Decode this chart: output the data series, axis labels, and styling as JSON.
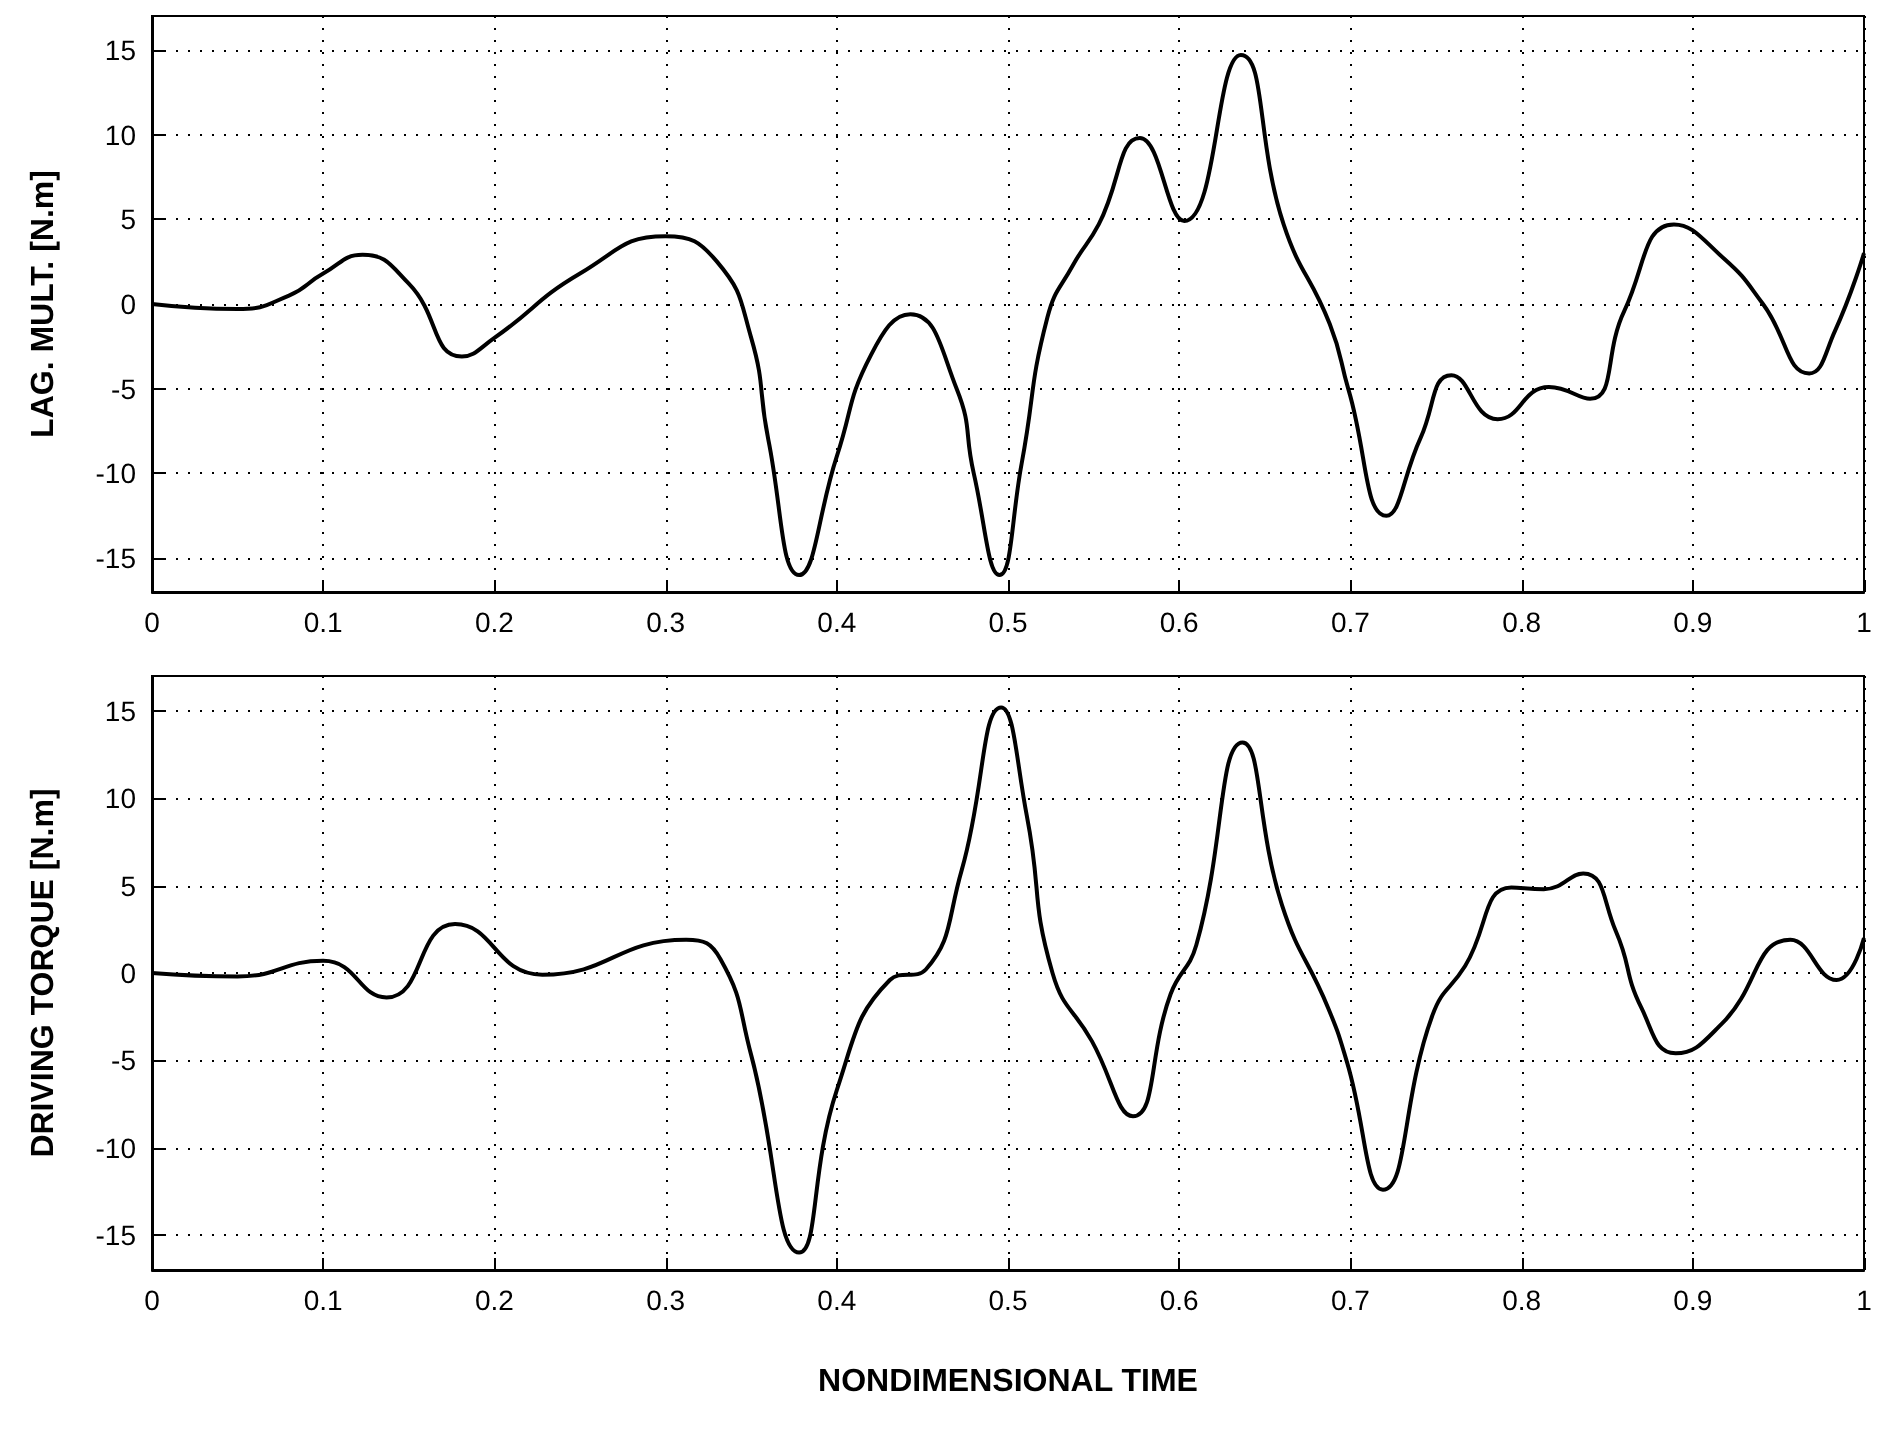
{
  "chart_data": [
    {
      "type": "line",
      "ylabel": "LAG. MULT. [N.m]",
      "xlim": [
        0,
        1
      ],
      "xticks": [
        0,
        0.1,
        0.2,
        0.3,
        0.4,
        0.5,
        0.6,
        0.7,
        0.8,
        0.9,
        1
      ],
      "ylim": [
        -17,
        17
      ],
      "yticks": [
        -15,
        -10,
        -5,
        0,
        5,
        10,
        15
      ],
      "grid": true,
      "marker": "none",
      "line_style": "solid",
      "series": [
        {
          "color": "#000000",
          "x": [
            0,
            0.05,
            0.08,
            0.1,
            0.123,
            0.15,
            0.181,
            0.2,
            0.25,
            0.3,
            0.33,
            0.35,
            0.36,
            0.378,
            0.4,
            0.42,
            0.443,
            0.47,
            0.48,
            0.495,
            0.508,
            0.523,
            0.538,
            0.553,
            0.577,
            0.603,
            0.636,
            0.661,
            0.688,
            0.699,
            0.721,
            0.741,
            0.759,
            0.786,
            0.816,
            0.84,
            0.86,
            0.889,
            0.918,
            0.941,
            0.968,
            0.983,
            1
          ],
          "values": [
            0,
            -0.3,
            0.5,
            1.8,
            2.9,
            1.2,
            -3.1,
            -2,
            1.8,
            4,
            2.5,
            -2,
            -8,
            -16,
            -9,
            -3,
            -0.6,
            -5,
            -10,
            -16,
            -9.4,
            -0.8,
            2.3,
            4.7,
            9.8,
            4.9,
            14.7,
            4.7,
            -1.2,
            -5.1,
            -12.5,
            -7.9,
            -4.2,
            -6.8,
            -4.9,
            -5.6,
            -0.4,
            4.7,
            2.7,
            0,
            -4.1,
            -1.6,
            3
          ]
        }
      ]
    },
    {
      "type": "line",
      "ylabel": "DRIVING TORQUE [N.m]",
      "xlabel": "NONDIMENSIONAL TIME",
      "xlim": [
        0,
        1
      ],
      "xticks": [
        0,
        0.1,
        0.2,
        0.3,
        0.4,
        0.5,
        0.6,
        0.7,
        0.8,
        0.9,
        1
      ],
      "ylim": [
        -17,
        17
      ],
      "yticks": [
        -15,
        -10,
        -5,
        0,
        5,
        10,
        15
      ],
      "grid": true,
      "marker": "none",
      "line_style": "solid",
      "series": [
        {
          "color": "#000000",
          "x": [
            0,
            0.05,
            0.1,
            0.137,
            0.177,
            0.228,
            0.312,
            0.332,
            0.35,
            0.378,
            0.4,
            0.431,
            0.452,
            0.473,
            0.496,
            0.511,
            0.526,
            0.549,
            0.573,
            0.595,
            0.61,
            0.637,
            0.66,
            0.687,
            0.698,
            0.719,
            0.748,
            0.767,
            0.794,
            0.813,
            0.836,
            0.855,
            0.87,
            0.89,
            0.917,
            0.957,
            0.984,
            1
          ],
          "values": [
            0,
            -0.2,
            0.7,
            -1.4,
            2.8,
            -0.1,
            1.9,
            0.8,
            -4.7,
            -16,
            -6.7,
            -0.4,
            0.2,
            5.9,
            15.2,
            9,
            0,
            -3.9,
            -8.2,
            -1.2,
            1.6,
            13.2,
            3.9,
            -2,
            -5.1,
            -12.4,
            -2.4,
            0.4,
            4.9,
            4.8,
            5.7,
            2.4,
            -2,
            -4.6,
            -2.9,
            1.9,
            -0.4,
            2
          ]
        }
      ]
    }
  ]
}
